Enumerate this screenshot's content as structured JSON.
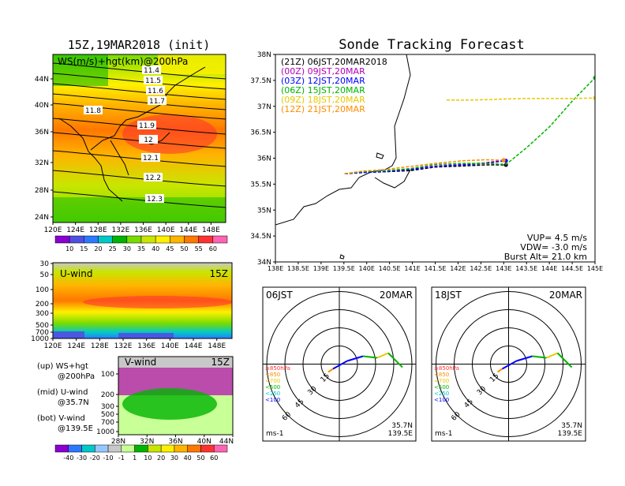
{
  "colors": {
    "ws_scale": [
      "#8a00d2",
      "#5050e0",
      "#2d78ff",
      "#00c8c8",
      "#00b400",
      "#78dc00",
      "#c8e600",
      "#fff000",
      "#ffb400",
      "#ff7800",
      "#ff3232",
      "#ff64b4"
    ],
    "u_scale": [
      "#8a00d2",
      "#2d78ff",
      "#00c8c8",
      "#96c8ff",
      "#c8c8c8",
      "#c8ff96",
      "#00b400",
      "#c8e600",
      "#fff000",
      "#ffb400",
      "#ff7800",
      "#ff3232",
      "#ff64b4"
    ],
    "track_colors": [
      "#000000",
      "#b400b4",
      "#0000ff",
      "#00b400",
      "#e6c800",
      "#ff8c00"
    ]
  },
  "chart_data": [
    {
      "id": "ws-map",
      "type": "heatmap",
      "title": "15Z,19MAR2018 (init)",
      "label": "WS(m/s)+hgt(km)@200hPa",
      "x_ticks": [
        "120E",
        "124E",
        "128E",
        "132E",
        "136E",
        "140E",
        "144E",
        "148E"
      ],
      "y_ticks": [
        "44N",
        "40N",
        "36N",
        "32N",
        "28N",
        "24N"
      ],
      "colorbar_ticks": [
        "10",
        "15",
        "20",
        "25",
        "30",
        "35",
        "40",
        "45",
        "50",
        "55",
        "60"
      ],
      "contour_labels": [
        "11.4",
        "11.5",
        "11.6",
        "11.7",
        "11.8",
        "11.9",
        "12",
        "12.1",
        "12.2",
        "12.3"
      ]
    },
    {
      "id": "u-wind",
      "type": "heatmap",
      "label": "U-wind",
      "time": "15Z",
      "x_ticks": [
        "120E",
        "124E",
        "128E",
        "132E",
        "136E",
        "140E",
        "144E",
        "148E"
      ],
      "y_ticks": [
        "30",
        "50",
        "100",
        "200",
        "300",
        "500",
        "700",
        "1000"
      ]
    },
    {
      "id": "v-wind",
      "type": "heatmap",
      "label": "V-wind",
      "time": "15Z",
      "x_ticks": [
        "28N",
        "32N",
        "36N",
        "40N",
        "44N"
      ],
      "y_ticks": [
        "100",
        "200",
        "300",
        "500",
        "700",
        "1000"
      ],
      "colorbar_ticks": [
        "-40",
        "-30",
        "-20",
        "-10",
        "-1",
        "1",
        "10",
        "20",
        "30",
        "40",
        "50",
        "60"
      ]
    },
    {
      "id": "track-map",
      "type": "line",
      "title": "Sonde Tracking Forecast",
      "x_ticks": [
        "138E",
        "138.5E",
        "139E",
        "139.5E",
        "140E",
        "140.5E",
        "141E",
        "141.5E",
        "142E",
        "142.5E",
        "143E",
        "143.5E",
        "144E",
        "144.5E",
        "145E"
      ],
      "y_ticks": [
        "38N",
        "37.5N",
        "37N",
        "36.5N",
        "36N",
        "35.5N",
        "35N",
        "34.5N",
        "34N"
      ],
      "xlim": [
        138,
        145
      ],
      "ylim": [
        34,
        38
      ],
      "series": [
        {
          "name": "(21Z) 06JST,20MAR2018",
          "lon": [
            139.52,
            139.9,
            140.4,
            140.95,
            141.5,
            142.1,
            142.6,
            143.05
          ],
          "lat": [
            35.7,
            35.73,
            35.74,
            35.76,
            35.83,
            35.85,
            35.87,
            35.87
          ]
        },
        {
          "name": "(00Z) 09JST,20MAR",
          "lon": [
            139.52,
            139.9,
            140.4,
            140.95,
            141.5,
            142.1,
            142.6,
            143.0
          ],
          "lat": [
            35.7,
            35.73,
            35.75,
            35.79,
            35.85,
            35.88,
            35.91,
            35.96
          ]
        },
        {
          "name": "(03Z) 12JST,20MAR",
          "lon": [
            139.52,
            139.9,
            140.4,
            140.95,
            141.5,
            142.1,
            142.6,
            143.05
          ],
          "lat": [
            35.7,
            35.72,
            35.74,
            35.78,
            35.84,
            35.87,
            35.9,
            35.95
          ]
        },
        {
          "name": "(06Z) 15JST,20MAR",
          "lon": [
            139.52,
            139.9,
            140.4,
            140.95,
            141.5,
            142.1,
            142.6,
            143.05,
            143.5,
            144.0,
            144.5,
            145.0
          ],
          "lat": [
            35.7,
            35.74,
            35.76,
            35.8,
            35.88,
            35.9,
            35.9,
            35.88,
            36.2,
            36.6,
            37.1,
            37.55
          ]
        },
        {
          "name": "(09Z) 18JST,20MAR",
          "lon": [
            141.75,
            142.2,
            142.7,
            143.0,
            143.5,
            144.0,
            144.5,
            145.0
          ],
          "lat": [
            37.12,
            37.12,
            37.13,
            37.14,
            37.15,
            37.15,
            37.15,
            37.16
          ]
        },
        {
          "name": "(12Z) 21JST,20MAR",
          "lon": [
            139.52,
            139.9,
            140.4,
            140.95,
            141.5,
            142.1,
            142.6,
            143.0
          ],
          "lat": [
            35.7,
            35.75,
            35.78,
            35.84,
            35.9,
            35.95,
            35.97,
            35.96
          ]
        }
      ],
      "stats": [
        "VUP= 4.5 m/s",
        "VDW= -3.0 m/s",
        "Burst Alt= 21.0 km"
      ]
    },
    {
      "id": "polar-06",
      "type": "line",
      "left_label": "06JST",
      "right_label": "20MAR",
      "ring_labels": [
        "15",
        "30",
        "45",
        "60"
      ],
      "level_labels": [
        "≥850hPa",
        "<850",
        "<700",
        "<500",
        "<250",
        "<100"
      ],
      "unit": "ms-1",
      "location": [
        "35.7N",
        "139.5E"
      ]
    },
    {
      "id": "polar-18",
      "type": "line",
      "left_label": "18JST",
      "right_label": "20MAR",
      "ring_labels": [
        "15",
        "30",
        "45",
        "60"
      ],
      "level_labels": [
        "≥850hPa",
        "<850",
        "<700",
        "<500",
        "<250",
        "<100"
      ],
      "unit": "ms-1",
      "location": [
        "35.7N",
        "139.5E"
      ]
    }
  ],
  "legend_text": {
    "up": "(up) WS+hgt",
    "up2": "@200hPa",
    "mid": "(mid) U-wind",
    "mid2": "@35.7N",
    "bot": "(bot) V-wind",
    "bot2": "@139.5E"
  }
}
